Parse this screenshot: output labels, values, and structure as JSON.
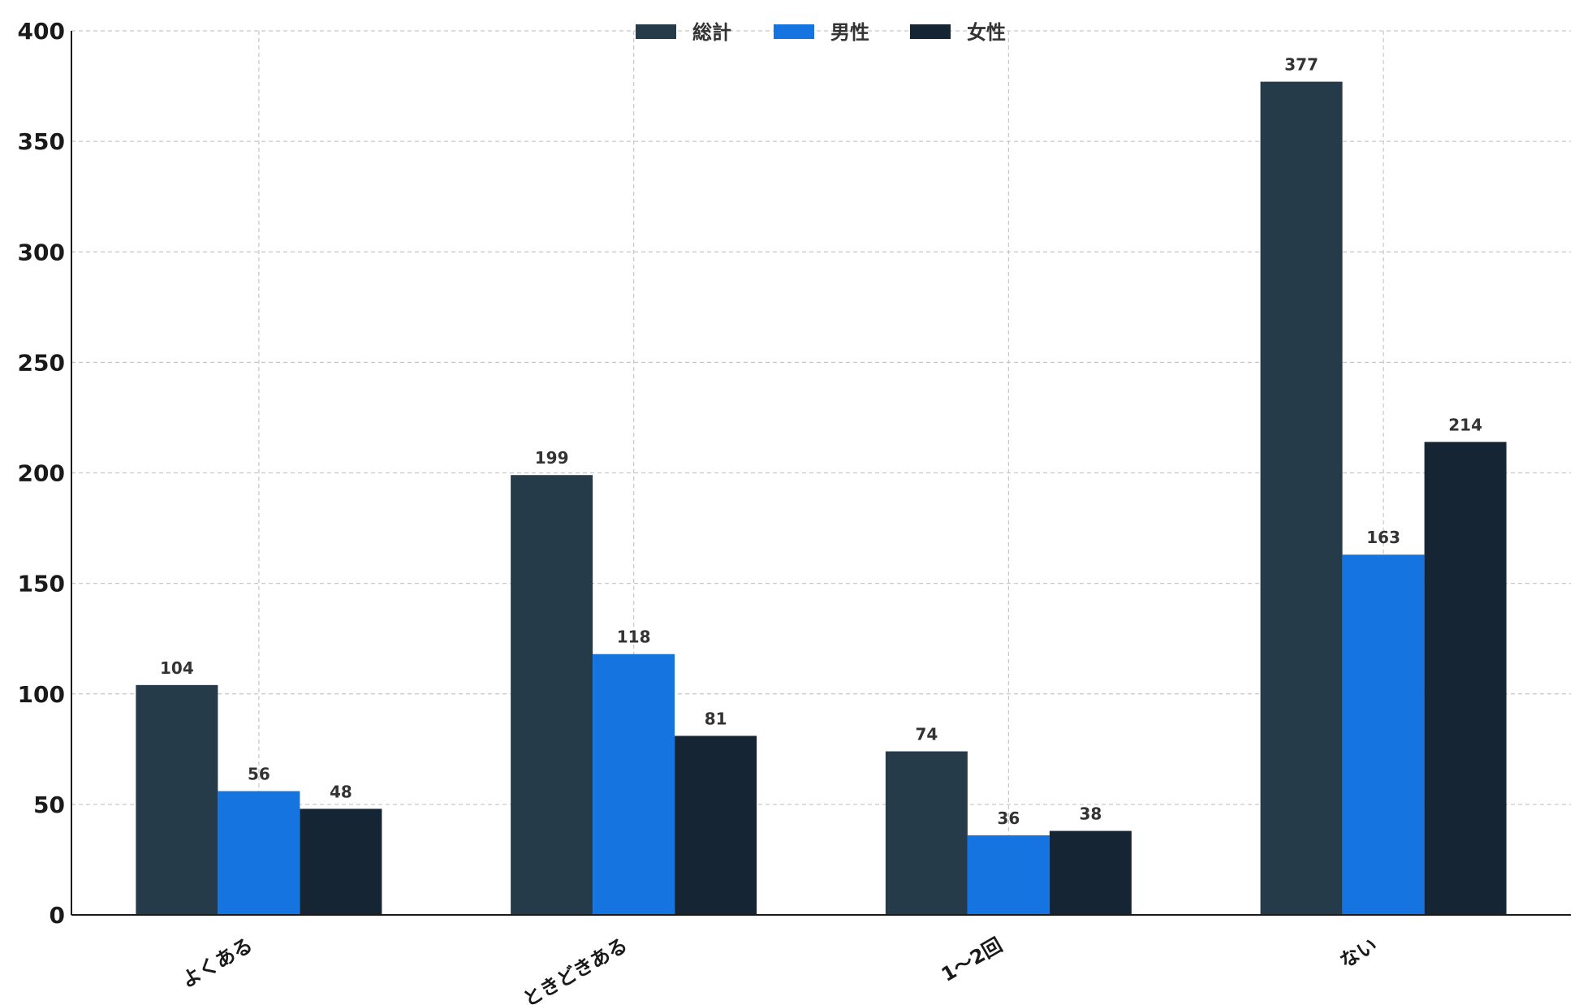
{
  "chart_data": {
    "type": "bar",
    "title": "",
    "xlabel": "",
    "ylabel": "",
    "categories": [
      "よくある",
      "ときどきある",
      "1〜2回",
      "ない"
    ],
    "series": [
      {
        "name": "総計",
        "color": "#263b49",
        "values": [
          104,
          199,
          74,
          377
        ]
      },
      {
        "name": "男性",
        "color": "#1674e0",
        "values": [
          56,
          118,
          36,
          163
        ]
      },
      {
        "name": "女性",
        "color": "#162534",
        "values": [
          48,
          81,
          38,
          214
        ]
      }
    ],
    "ylim": [
      0,
      400
    ],
    "yticks": [
      0,
      50,
      100,
      150,
      200,
      250,
      300,
      350,
      400
    ],
    "grid": true,
    "legend_position": "top-center",
    "data_labels": true
  }
}
